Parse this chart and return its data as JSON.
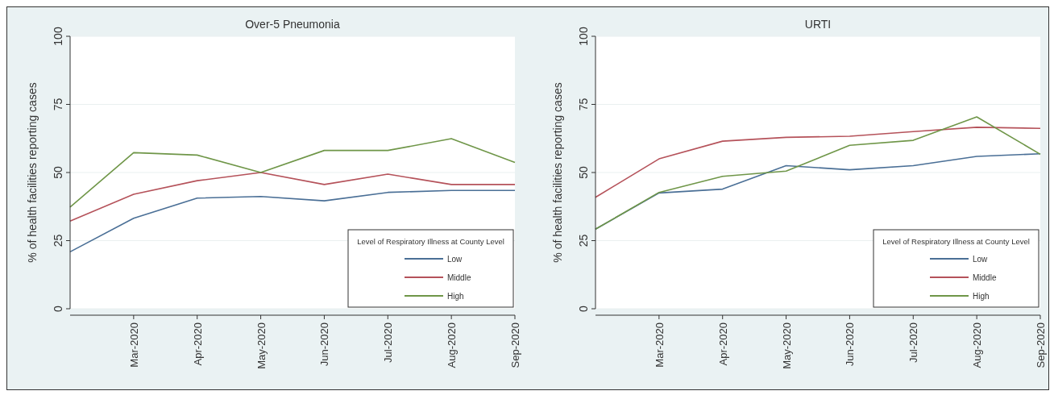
{
  "chart_data": [
    {
      "type": "line",
      "title": "Over-5 Pneumonia",
      "ylabel": "% of health facilities reporting cases",
      "categories": [
        null,
        "Mar-2020",
        "Apr-2020",
        "May-2020",
        "Jun-2020",
        "Jul-2020",
        "Aug-2020",
        "Sep-2020"
      ],
      "ylim": [
        0,
        100
      ],
      "yticks": [
        0,
        25,
        50,
        75,
        100
      ],
      "grid": "y",
      "legend": "bottom right",
      "legend_title": "Level of Respiratory Illness at County Level",
      "series": [
        {
          "name": "Low",
          "color": "#4a6f96",
          "values": [
            20.9,
            33.2,
            40.6,
            41.2,
            39.6,
            42.7,
            43.4,
            43.4
          ]
        },
        {
          "name": "Middle",
          "color": "#b5525a",
          "values": [
            32.2,
            42,
            47,
            50,
            45.6,
            49.4,
            45.6,
            45.6
          ]
        },
        {
          "name": "High",
          "color": "#6f9648",
          "values": [
            37.3,
            57.3,
            56.4,
            50,
            58.1,
            58.1,
            62.4,
            53.7
          ]
        }
      ]
    },
    {
      "type": "line",
      "title": "URTI",
      "ylabel": "% of health facilities reporting cases",
      "categories": [
        null,
        "Mar-2020",
        "Apr-2020",
        "May-2020",
        "Jun-2020",
        "Jul-2020",
        "Aug-2020",
        "Sep-2020"
      ],
      "ylim": [
        0,
        100
      ],
      "yticks": [
        0,
        25,
        50,
        75,
        100
      ],
      "grid": "y",
      "legend": "bottom right",
      "legend_title": "Level of Respiratory Illness at County Level",
      "series": [
        {
          "name": "Low",
          "color": "#4a6f96",
          "values": [
            29.2,
            42.5,
            43.9,
            52.5,
            51,
            52.5,
            55.9,
            56.9
          ]
        },
        {
          "name": "Middle",
          "color": "#b5525a",
          "values": [
            40.9,
            55,
            61.5,
            62.9,
            63.3,
            65,
            66.6,
            66.2
          ]
        },
        {
          "name": "High",
          "color": "#6f9648",
          "values": [
            29.2,
            42.7,
            48.6,
            50.5,
            60,
            61.8,
            70.4,
            56.7
          ]
        }
      ]
    }
  ]
}
